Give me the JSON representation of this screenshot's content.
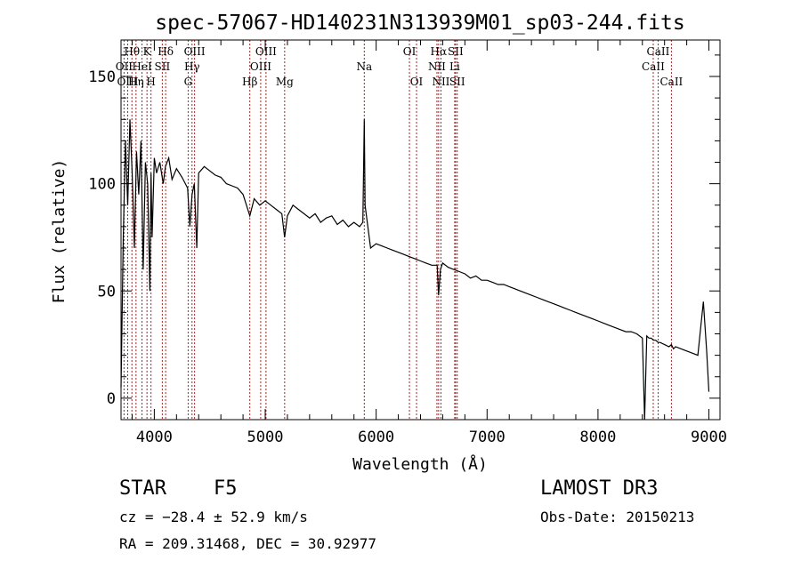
{
  "chart_data": {
    "type": "line",
    "title": "spec-57067-HD140231N313939M01_sp03-244.fits",
    "xlabel": "Wavelength (Å)",
    "ylabel": "Flux (relative)",
    "xlim": [
      3700,
      9100
    ],
    "ylim": [
      -10,
      167
    ],
    "x_ticks": [
      4000,
      5000,
      6000,
      7000,
      8000,
      9000
    ],
    "y_ticks": [
      0,
      50,
      100,
      150
    ],
    "grid": false,
    "series": [
      {
        "x": [
          3700,
          3720,
          3740,
          3760,
          3780,
          3800,
          3820,
          3840,
          3860,
          3880,
          3900,
          3920,
          3940,
          3960,
          3970,
          3980,
          4000,
          4020,
          4050,
          4080,
          4100,
          4130,
          4160,
          4200,
          4250,
          4300,
          4320,
          4340,
          4360,
          4383,
          4400,
          4450,
          4500,
          4550,
          4600,
          4650,
          4700,
          4750,
          4800,
          4861,
          4900,
          4950,
          5000,
          5050,
          5100,
          5150,
          5175,
          5200,
          5250,
          5300,
          5350,
          5400,
          5450,
          5500,
          5550,
          5600,
          5650,
          5700,
          5750,
          5800,
          5850,
          5880,
          5893,
          5900,
          5950,
          6000,
          6050,
          6100,
          6150,
          6200,
          6250,
          6300,
          6350,
          6400,
          6450,
          6500,
          6550,
          6563,
          6580,
          6600,
          6650,
          6700,
          6750,
          6800,
          6850,
          6900,
          6950,
          7000,
          7050,
          7100,
          7150,
          7200,
          7250,
          7300,
          7350,
          7400,
          7450,
          7500,
          7550,
          7600,
          7650,
          7700,
          7750,
          7800,
          7850,
          7900,
          7950,
          8000,
          8050,
          8100,
          8150,
          8200,
          8250,
          8300,
          8350,
          8400,
          8420,
          8440,
          8460,
          8480,
          8500,
          8520,
          8542,
          8560,
          8600,
          8640,
          8662,
          8680,
          8700,
          8750,
          8800,
          8850,
          8900,
          8950,
          8980,
          9000
        ],
        "y": [
          5,
          75,
          120,
          90,
          130,
          105,
          70,
          115,
          95,
          120,
          60,
          110,
          100,
          50,
          105,
          75,
          112,
          105,
          110,
          100,
          108,
          112,
          102,
          107,
          103,
          98,
          80,
          95,
          100,
          70,
          105,
          108,
          106,
          104,
          103,
          100,
          99,
          98,
          95,
          85,
          93,
          90,
          92,
          90,
          88,
          86,
          75,
          85,
          90,
          88,
          86,
          84,
          86,
          82,
          84,
          85,
          81,
          83,
          80,
          82,
          80,
          82,
          130,
          90,
          70,
          72,
          71,
          70,
          69,
          68,
          67,
          66,
          65,
          64,
          63,
          62,
          62,
          48,
          60,
          63,
          61,
          60,
          59,
          58,
          56,
          57,
          55,
          55,
          54,
          53,
          53,
          52,
          51,
          50,
          49,
          48,
          47,
          46,
          45,
          44,
          43,
          42,
          41,
          40,
          39,
          38,
          37,
          36,
          35,
          34,
          33,
          32,
          31,
          31,
          30,
          28,
          -10,
          29,
          28,
          28,
          27,
          27,
          26,
          26,
          25,
          24,
          25,
          23,
          24,
          23,
          22,
          21,
          20,
          45,
          22,
          3
        ]
      }
    ],
    "line_labels": [
      {
        "text": "Hθ",
        "wave": 3798,
        "row": 0
      },
      {
        "text": "K",
        "wave": 3934,
        "row": 0
      },
      {
        "text": "Hδ",
        "wave": 4102,
        "row": 0
      },
      {
        "text": "OII",
        "wave": 3727,
        "row": 1
      },
      {
        "text": "HeI",
        "wave": 3889,
        "row": 1
      },
      {
        "text": "SII",
        "wave": 4072,
        "row": 1
      },
      {
        "text": "OIII",
        "wave": 3760,
        "row": 2
      },
      {
        "text": "Hη",
        "wave": 3835,
        "row": 2
      },
      {
        "text": "H",
        "wave": 3970,
        "row": 2
      },
      {
        "text": "OIII",
        "wave": 4363,
        "row": 0
      },
      {
        "text": "Hγ",
        "wave": 4340,
        "row": 1
      },
      {
        "text": "G",
        "wave": 4305,
        "row": 2
      },
      {
        "text": "OIII",
        "wave": 5007,
        "row": 0
      },
      {
        "text": "OIII",
        "wave": 4959,
        "row": 1
      },
      {
        "text": "Hβ",
        "wave": 4861,
        "row": 2
      },
      {
        "text": "Mg",
        "wave": 5175,
        "row": 2
      },
      {
        "text": "Na",
        "wave": 5893,
        "row": 1
      },
      {
        "text": "OI",
        "wave": 6300,
        "row": 0
      },
      {
        "text": "OI",
        "wave": 6364,
        "row": 2
      },
      {
        "text": "Hα",
        "wave": 6563,
        "row": 0
      },
      {
        "text": "SII",
        "wave": 6716,
        "row": 0
      },
      {
        "text": "NII",
        "wave": 6548,
        "row": 1
      },
      {
        "text": "Li",
        "wave": 6708,
        "row": 1
      },
      {
        "text": "NII",
        "wave": 6584,
        "row": 2
      },
      {
        "text": "SII",
        "wave": 6731,
        "row": 2
      },
      {
        "text": "CaII",
        "wave": 8542,
        "row": 0
      },
      {
        "text": "CaII",
        "wave": 8498,
        "row": 1
      },
      {
        "text": "CaII",
        "wave": 8662,
        "row": 2
      }
    ],
    "line_color": "#b22222"
  },
  "info": {
    "class_label": "STAR",
    "subclass": "F5",
    "cz": "cz = −28.4 ± 52.9 km/s",
    "radec": "RA = 209.31468, DEC =  30.92977",
    "survey": "LAMOST DR3",
    "obs_date": "Obs-Date: 20150213"
  }
}
